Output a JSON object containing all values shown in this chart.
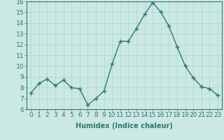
{
  "x": [
    0,
    1,
    2,
    3,
    4,
    5,
    6,
    7,
    8,
    9,
    10,
    11,
    12,
    13,
    14,
    15,
    16,
    17,
    18,
    19,
    20,
    21,
    22,
    23
  ],
  "y": [
    7.5,
    8.4,
    8.8,
    8.2,
    8.7,
    8.0,
    7.9,
    6.4,
    7.0,
    7.7,
    10.2,
    12.3,
    12.3,
    13.5,
    14.8,
    15.9,
    15.0,
    13.7,
    11.8,
    10.0,
    8.9,
    8.1,
    7.9,
    7.3
  ],
  "line_color": "#2d7a6e",
  "marker": "+",
  "marker_size": 4,
  "bg_color": "#cce8e4",
  "grid_color": "#a8d4cf",
  "xlabel": "Humidex (Indice chaleur)",
  "xlim": [
    -0.5,
    23.5
  ],
  "ylim": [
    6,
    16
  ],
  "yticks": [
    6,
    7,
    8,
    9,
    10,
    11,
    12,
    13,
    14,
    15,
    16
  ],
  "xticks": [
    0,
    1,
    2,
    3,
    4,
    5,
    6,
    7,
    8,
    9,
    10,
    11,
    12,
    13,
    14,
    15,
    16,
    17,
    18,
    19,
    20,
    21,
    22,
    23
  ],
  "tick_color": "#2d7a6e",
  "label_color": "#2d7a6e",
  "xlabel_fontsize": 7,
  "tick_fontsize": 6.5,
  "line_width": 1.0
}
